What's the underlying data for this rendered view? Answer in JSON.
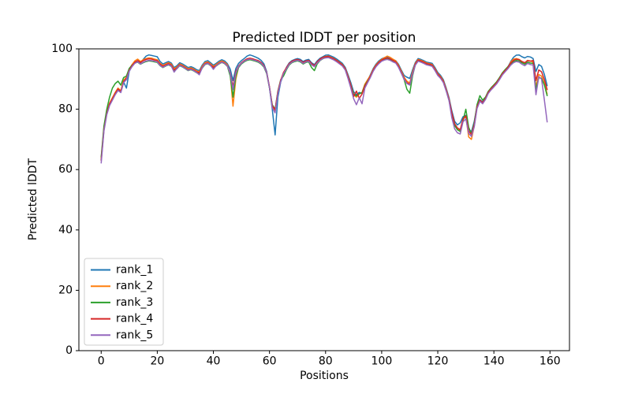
{
  "figure": {
    "title": "Predicted lDDT per position",
    "xlabel": "Positions",
    "ylabel": "Predicted lDDT",
    "background": "#ffffff",
    "spine_color": "#000000"
  },
  "chart_data": {
    "type": "line",
    "title": "Predicted lDDT per position",
    "xlabel": "Positions",
    "ylabel": "Predicted lDDT",
    "xlim": [
      -7.95,
      166.95
    ],
    "ylim": [
      0,
      100
    ],
    "xticks": [
      0,
      20,
      40,
      60,
      80,
      100,
      120,
      140,
      160
    ],
    "yticks": [
      0,
      20,
      40,
      60,
      80,
      100
    ],
    "grid": false,
    "legend_position": "lower left",
    "x_start": 0,
    "x_step": 1,
    "n_points": 160,
    "series": [
      {
        "name": "rank_1",
        "color": "#1f77b4",
        "values": [
          63.2,
          73.5,
          78.8,
          81.5,
          83.2,
          85.0,
          86.5,
          85.8,
          89.0,
          87.0,
          92.5,
          94.3,
          95.5,
          96.0,
          95.3,
          96.5,
          97.6,
          98.0,
          97.8,
          97.6,
          97.4,
          95.8,
          95.0,
          95.4,
          95.8,
          95.3,
          93.8,
          94.4,
          95.4,
          95.0,
          94.4,
          93.8,
          94.1,
          93.7,
          93.1,
          92.8,
          94.6,
          95.8,
          96.1,
          95.4,
          94.6,
          95.2,
          95.9,
          96.4,
          96.0,
          95.1,
          93.3,
          89.5,
          93.5,
          95.2,
          96.1,
          96.8,
          97.6,
          98.0,
          97.7,
          97.3,
          96.9,
          96.2,
          95.1,
          92.5,
          87.0,
          80.0,
          71.5,
          84.0,
          89.0,
          91.5,
          93.8,
          95.3,
          96.1,
          96.5,
          96.8,
          96.5,
          95.8,
          96.3,
          96.5,
          95.4,
          94.8,
          96.0,
          96.9,
          97.4,
          97.9,
          98.0,
          97.6,
          97.2,
          96.6,
          95.9,
          95.2,
          93.9,
          91.5,
          88.8,
          85.8,
          84.8,
          85.6,
          85.2,
          88.0,
          89.5,
          91.5,
          93.5,
          95.0,
          96.0,
          96.7,
          97.1,
          97.3,
          97.0,
          96.5,
          96.1,
          94.9,
          93.0,
          91.2,
          90.6,
          90.2,
          93.0,
          95.5,
          96.8,
          96.5,
          96.1,
          95.6,
          95.4,
          95.2,
          93.8,
          92.2,
          91.2,
          89.8,
          87.0,
          83.8,
          79.5,
          76.0,
          74.8,
          75.5,
          77.5,
          78.0,
          73.5,
          72.5,
          76.0,
          81.0,
          83.2,
          82.4,
          83.8,
          85.8,
          87.0,
          88.0,
          89.0,
          90.4,
          91.9,
          93.0,
          94.0,
          95.8,
          97.2,
          97.9,
          98.0,
          97.4,
          97.0,
          97.5,
          97.3,
          96.8,
          92.5,
          94.8,
          94.2,
          91.5,
          87.8
        ]
      },
      {
        "name": "rank_2",
        "color": "#ff7f0e",
        "values": [
          63.8,
          74.0,
          79.2,
          82.0,
          83.8,
          85.6,
          87.0,
          86.2,
          89.6,
          90.6,
          93.2,
          94.8,
          96.0,
          96.6,
          95.8,
          96.4,
          96.8,
          97.0,
          96.9,
          96.6,
          96.4,
          95.2,
          94.5,
          95.0,
          95.4,
          94.9,
          93.4,
          94.0,
          95.0,
          94.6,
          94.0,
          93.4,
          93.7,
          93.3,
          92.7,
          92.4,
          94.2,
          95.4,
          95.7,
          95.0,
          94.2,
          94.8,
          95.5,
          96.0,
          95.6,
          94.7,
          91.5,
          81.0,
          90.0,
          94.0,
          95.3,
          96.0,
          96.6,
          96.8,
          96.6,
          96.3,
          96.0,
          95.4,
          94.4,
          92.0,
          87.2,
          81.0,
          79.5,
          85.5,
          89.5,
          92.0,
          93.6,
          95.0,
          95.8,
          96.2,
          96.4,
          96.1,
          95.4,
          95.9,
          96.1,
          95.0,
          94.4,
          95.6,
          96.5,
          97.1,
          97.5,
          97.6,
          97.2,
          96.8,
          96.2,
          95.5,
          94.8,
          93.5,
          91.0,
          88.0,
          84.8,
          84.0,
          85.0,
          85.6,
          88.3,
          89.8,
          91.2,
          93.2,
          94.7,
          95.7,
          96.5,
          97.1,
          97.6,
          97.2,
          96.6,
          96.0,
          94.6,
          92.6,
          90.6,
          89.3,
          88.7,
          92.3,
          95.2,
          96.5,
          96.2,
          95.8,
          95.3,
          95.1,
          94.8,
          93.4,
          91.8,
          90.8,
          89.4,
          86.6,
          83.4,
          78.6,
          75.0,
          73.6,
          73.0,
          76.6,
          77.6,
          70.8,
          70.0,
          74.5,
          80.6,
          82.9,
          82.1,
          83.4,
          85.5,
          86.7,
          87.7,
          88.7,
          90.1,
          91.6,
          92.7,
          93.7,
          95.6,
          96.6,
          96.8,
          96.5,
          95.8,
          95.3,
          96.2,
          96.0,
          95.6,
          87.5,
          91.5,
          91.0,
          88.5,
          85.0
        ]
      },
      {
        "name": "rank_3",
        "color": "#2ca02c",
        "values": [
          64.2,
          74.5,
          80.0,
          84.0,
          87.0,
          88.5,
          89.3,
          88.0,
          90.5,
          91.0,
          93.5,
          94.6,
          95.3,
          95.6,
          94.9,
          95.4,
          95.8,
          96.0,
          95.9,
          95.7,
          95.5,
          94.4,
          93.8,
          94.3,
          94.7,
          94.2,
          92.8,
          93.4,
          94.4,
          94.0,
          93.4,
          92.8,
          93.1,
          92.7,
          92.1,
          91.8,
          93.6,
          94.8,
          95.1,
          94.4,
          93.7,
          94.3,
          95.0,
          95.5,
          95.1,
          94.2,
          91.0,
          84.0,
          91.0,
          93.8,
          95.0,
          95.7,
          96.2,
          96.4,
          96.2,
          95.9,
          95.6,
          95.0,
          94.0,
          91.8,
          87.0,
          81.5,
          80.0,
          86.0,
          89.8,
          91.0,
          93.0,
          94.6,
          95.4,
          95.8,
          96.0,
          95.7,
          95.0,
          95.5,
          95.7,
          93.8,
          92.8,
          95.0,
          96.1,
          96.7,
          97.1,
          97.2,
          96.8,
          96.4,
          95.8,
          95.1,
          94.4,
          93.1,
          90.6,
          87.8,
          85.0,
          84.4,
          85.2,
          85.4,
          87.9,
          89.4,
          90.8,
          92.8,
          94.3,
          95.3,
          96.1,
          96.5,
          96.7,
          96.4,
          95.9,
          95.5,
          94.1,
          92.1,
          89.8,
          86.6,
          85.3,
          91.0,
          94.8,
          96.1,
          95.8,
          95.4,
          94.9,
          94.7,
          94.4,
          93.0,
          91.4,
          90.4,
          89.0,
          86.2,
          83.0,
          78.2,
          74.6,
          73.2,
          72.6,
          76.2,
          80.0,
          74.0,
          71.8,
          75.5,
          81.5,
          84.5,
          83.0,
          84.0,
          85.9,
          87.1,
          88.1,
          89.1,
          90.5,
          92.0,
          93.1,
          94.1,
          95.0,
          95.8,
          96.2,
          96.0,
          95.4,
          94.9,
          95.6,
          95.3,
          95.2,
          86.5,
          90.5,
          90.2,
          88.0,
          84.5
        ]
      },
      {
        "name": "rank_4",
        "color": "#d62728",
        "values": [
          63.0,
          73.2,
          78.6,
          81.8,
          83.5,
          85.3,
          86.7,
          85.9,
          89.2,
          90.2,
          92.9,
          94.4,
          95.6,
          96.1,
          95.5,
          96.1,
          96.5,
          96.7,
          96.6,
          96.3,
          96.1,
          94.9,
          94.2,
          94.7,
          95.1,
          94.6,
          93.0,
          93.7,
          94.7,
          94.3,
          93.7,
          93.1,
          93.4,
          93.0,
          92.4,
          92.1,
          93.9,
          95.1,
          95.4,
          94.7,
          93.9,
          94.5,
          95.2,
          95.7,
          95.3,
          94.4,
          92.0,
          87.5,
          92.5,
          94.3,
          95.4,
          96.1,
          96.7,
          96.9,
          96.7,
          96.4,
          96.1,
          95.5,
          94.5,
          92.2,
          87.4,
          81.2,
          79.8,
          85.8,
          89.6,
          92.2,
          93.7,
          95.1,
          95.9,
          96.3,
          96.5,
          96.2,
          95.5,
          96.0,
          96.2,
          95.1,
          94.5,
          95.7,
          96.6,
          97.2,
          97.4,
          97.5,
          97.1,
          96.7,
          96.1,
          95.4,
          94.7,
          93.4,
          90.8,
          87.9,
          84.2,
          86.0,
          83.6,
          85.0,
          87.7,
          89.2,
          91.0,
          93.0,
          94.5,
          95.5,
          96.3,
          96.8,
          97.0,
          96.7,
          96.2,
          95.7,
          94.3,
          92.3,
          90.2,
          88.8,
          88.3,
          91.8,
          95.0,
          96.3,
          96.0,
          95.6,
          95.1,
          94.9,
          94.6,
          93.2,
          91.6,
          90.6,
          89.2,
          86.4,
          83.2,
          78.8,
          75.2,
          73.8,
          73.2,
          76.8,
          77.8,
          72.8,
          71.6,
          75.0,
          80.8,
          83.0,
          82.2,
          83.6,
          85.6,
          86.8,
          87.8,
          88.8,
          90.2,
          91.7,
          92.8,
          93.8,
          95.3,
          96.2,
          96.6,
          96.4,
          95.8,
          95.4,
          96.1,
          95.9,
          96.2,
          89.5,
          93.0,
          92.4,
          89.8,
          86.5
        ]
      },
      {
        "name": "rank_5",
        "color": "#9467bd",
        "values": [
          62.2,
          72.8,
          78.2,
          81.2,
          83.0,
          84.8,
          86.2,
          85.5,
          88.8,
          89.8,
          92.6,
          94.1,
          95.2,
          95.7,
          95.0,
          95.6,
          96.0,
          96.2,
          96.1,
          95.9,
          95.7,
          94.5,
          93.9,
          94.4,
          94.8,
          94.3,
          92.3,
          93.5,
          94.5,
          94.1,
          93.5,
          92.9,
          93.2,
          92.8,
          92.2,
          91.4,
          93.7,
          94.9,
          95.2,
          94.5,
          93.2,
          94.4,
          95.1,
          95.6,
          95.2,
          94.3,
          91.8,
          86.5,
          92.0,
          94.1,
          95.2,
          95.9,
          96.4,
          96.6,
          96.4,
          96.1,
          95.8,
          95.2,
          94.2,
          92.0,
          87.1,
          80.5,
          78.8,
          85.2,
          89.2,
          91.8,
          93.3,
          94.8,
          95.6,
          96.0,
          96.2,
          95.9,
          95.2,
          95.7,
          95.9,
          94.7,
          94.1,
          95.3,
          96.2,
          96.8,
          97.0,
          97.1,
          96.7,
          96.3,
          95.7,
          95.0,
          94.3,
          93.0,
          90.2,
          87.0,
          83.5,
          81.5,
          83.8,
          81.8,
          87.0,
          88.8,
          90.6,
          92.6,
          94.1,
          95.1,
          95.9,
          96.3,
          96.5,
          96.2,
          95.7,
          95.3,
          93.9,
          91.9,
          89.9,
          88.5,
          88.0,
          91.5,
          94.6,
          95.9,
          95.6,
          95.2,
          94.7,
          94.5,
          94.2,
          92.8,
          91.2,
          90.2,
          88.8,
          86.0,
          82.8,
          77.2,
          73.5,
          72.2,
          71.8,
          75.8,
          76.8,
          72.0,
          71.0,
          74.2,
          80.2,
          82.6,
          81.8,
          83.2,
          85.2,
          86.4,
          87.4,
          88.4,
          89.8,
          91.3,
          92.4,
          93.4,
          94.6,
          95.4,
          95.8,
          95.6,
          94.9,
          94.4,
          95.2,
          94.8,
          94.6,
          84.8,
          90.8,
          90.0,
          83.0,
          75.8
        ]
      }
    ]
  }
}
